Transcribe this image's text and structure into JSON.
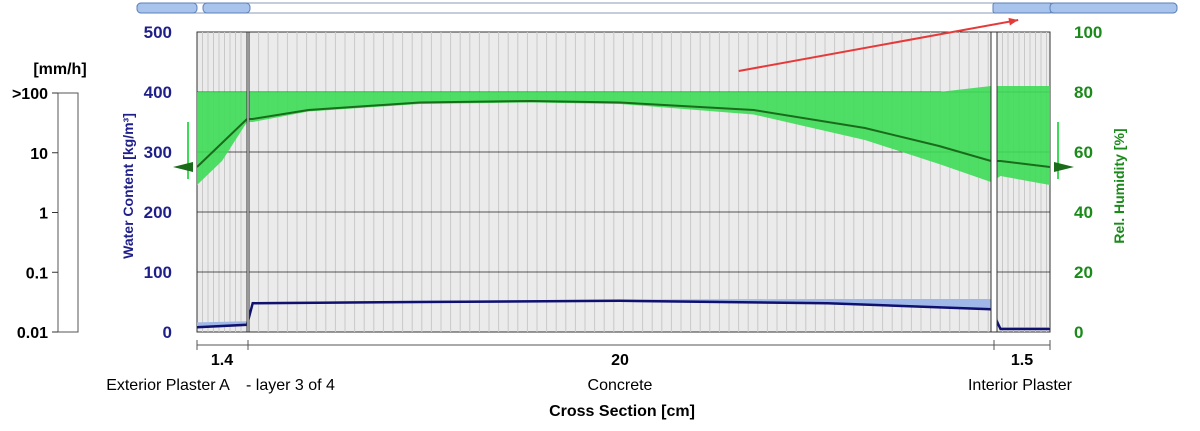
{
  "colors": {
    "water_axis": "#1f1f8a",
    "humidity_axis": "#1a8a1a",
    "humidity_fill": "#3ddc57",
    "humidity_line": "#1a6b1a",
    "water_line": "#101070",
    "water_band": "#9fb8e8",
    "plot_bg": "#ebebeb",
    "grid_v": "#c8c8c8",
    "arrow": "#e63a3a",
    "scrollbar_fill": "#a8c4ec",
    "scrollbar_border": "#5a7fb8"
  },
  "rain_scale": {
    "unit": "[mm/h]",
    "ticks": [
      ">100",
      "10",
      "1",
      "0.1",
      "0.01"
    ]
  },
  "chart_data": {
    "type": "area",
    "xlabel": "Cross Section [cm]",
    "y_left": {
      "label": "Water Content [kg/m³]",
      "range": [
        0,
        500
      ],
      "ticks": [
        "0",
        "100",
        "200",
        "300",
        "400",
        "500"
      ]
    },
    "y_right": {
      "label": "Rel. Humidity [%]",
      "range": [
        0,
        100
      ],
      "ticks": [
        "0",
        "20",
        "40",
        "60",
        "80",
        "100"
      ]
    },
    "grid": true,
    "layers": [
      {
        "name": "Exterior Plaster A",
        "thickness": "1.4",
        "note": "- layer 3 of 4",
        "cm": 1.4
      },
      {
        "name": "Concrete",
        "thickness": "20",
        "cm": 20
      },
      {
        "name": "Interior Plaster",
        "thickness": "1.5",
        "cm": 1.5
      }
    ],
    "series": [
      {
        "name": "Rel. Humidity",
        "axis": "right",
        "x": [
          0,
          0.7,
          1.4,
          1.5,
          3,
          6,
          9,
          11.4,
          15,
          18,
          20,
          21.4,
          21.5,
          22.9
        ],
        "values": [
          55,
          63,
          71,
          71,
          74,
          76.5,
          77,
          76.5,
          74,
          68,
          62,
          57,
          57,
          55
        ],
        "band_min": [
          49,
          57,
          70,
          70,
          73.5,
          76,
          76.5,
          76,
          72.5,
          64,
          56,
          50,
          52,
          49
        ],
        "band_max": [
          80,
          80,
          80,
          80,
          80,
          80,
          80,
          80,
          80,
          80,
          80,
          82,
          82,
          82
        ]
      },
      {
        "name": "Water Content",
        "axis": "left",
        "x": [
          0,
          1.4,
          1.5,
          6,
          11.4,
          17,
          21.4,
          21.5,
          22.9
        ],
        "values": [
          8,
          12,
          48,
          50,
          52,
          48,
          38,
          5,
          5
        ],
        "band_max": [
          16,
          18,
          50,
          52,
          54,
          55,
          55,
          8,
          8
        ]
      }
    ],
    "annotations": [
      {
        "type": "arrow",
        "from": [
          14.6,
          87
        ],
        "to": [
          22.0,
          104
        ]
      },
      {
        "type": "marker",
        "axis": "right",
        "side": "left",
        "value": 55
      },
      {
        "type": "marker",
        "axis": "right",
        "side": "right",
        "value": 55
      }
    ]
  }
}
